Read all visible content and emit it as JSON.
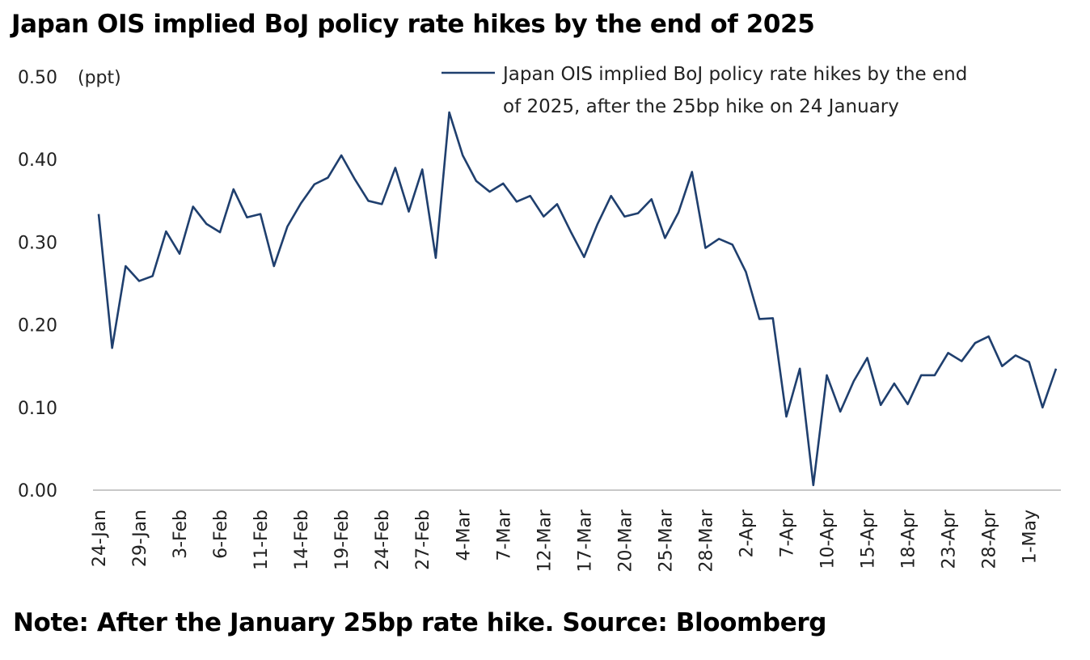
{
  "header": {
    "title": "Japan OIS implied BoJ policy rate hikes by the end of 2025"
  },
  "footer": {
    "note": "Note: After the January 25bp rate hike. Source: Bloomberg"
  },
  "colors": {
    "line": "#1f3f6e",
    "axis": "#c8c8c8"
  },
  "chart_data": {
    "type": "line",
    "title": "Japan OIS implied BoJ policy rate hikes by the end of 2025",
    "ylabel": "(ppt)",
    "ylim": [
      0,
      0.5
    ],
    "yticks": [
      "0.00",
      "0.10",
      "0.20",
      "0.30",
      "0.40",
      "0.50"
    ],
    "x_tick_labels": [
      "24-Jan",
      "29-Jan",
      "3-Feb",
      "6-Feb",
      "11-Feb",
      "14-Feb",
      "19-Feb",
      "24-Feb",
      "27-Feb",
      "4-Mar",
      "7-Mar",
      "12-Mar",
      "17-Mar",
      "20-Mar",
      "25-Mar",
      "28-Mar",
      "2-Apr",
      "7-Apr",
      "10-Apr",
      "15-Apr",
      "18-Apr",
      "23-Apr",
      "28-Apr",
      "1-May"
    ],
    "legend": {
      "position": "top-right",
      "lines": [
        "Japan OIS implied BoJ policy rate hikes by the end",
        "of 2025, after the 25bp hike on 24 January"
      ]
    },
    "series": [
      {
        "name": "Japan OIS implied BoJ policy rate hikes by the end of 2025, after the 25bp hike on 24 January",
        "values": [
          0.334,
          0.172,
          0.271,
          0.253,
          0.259,
          0.313,
          0.286,
          0.343,
          0.322,
          0.312,
          0.364,
          0.33,
          0.334,
          0.271,
          0.319,
          0.347,
          0.37,
          0.378,
          0.405,
          0.376,
          0.35,
          0.346,
          0.39,
          0.337,
          0.388,
          0.281,
          0.457,
          0.405,
          0.374,
          0.361,
          0.371,
          0.349,
          0.356,
          0.331,
          0.346,
          0.313,
          0.282,
          0.322,
          0.356,
          0.331,
          0.335,
          0.352,
          0.305,
          0.336,
          0.385,
          0.293,
          0.304,
          0.297,
          0.264,
          0.207,
          0.208,
          0.089,
          0.147,
          0.006,
          0.139,
          0.095,
          0.132,
          0.16,
          0.103,
          0.129,
          0.104,
          0.139,
          0.139,
          0.166,
          0.156,
          0.178,
          0.186,
          0.15,
          0.163,
          0.155,
          0.1,
          0.147
        ]
      }
    ]
  }
}
